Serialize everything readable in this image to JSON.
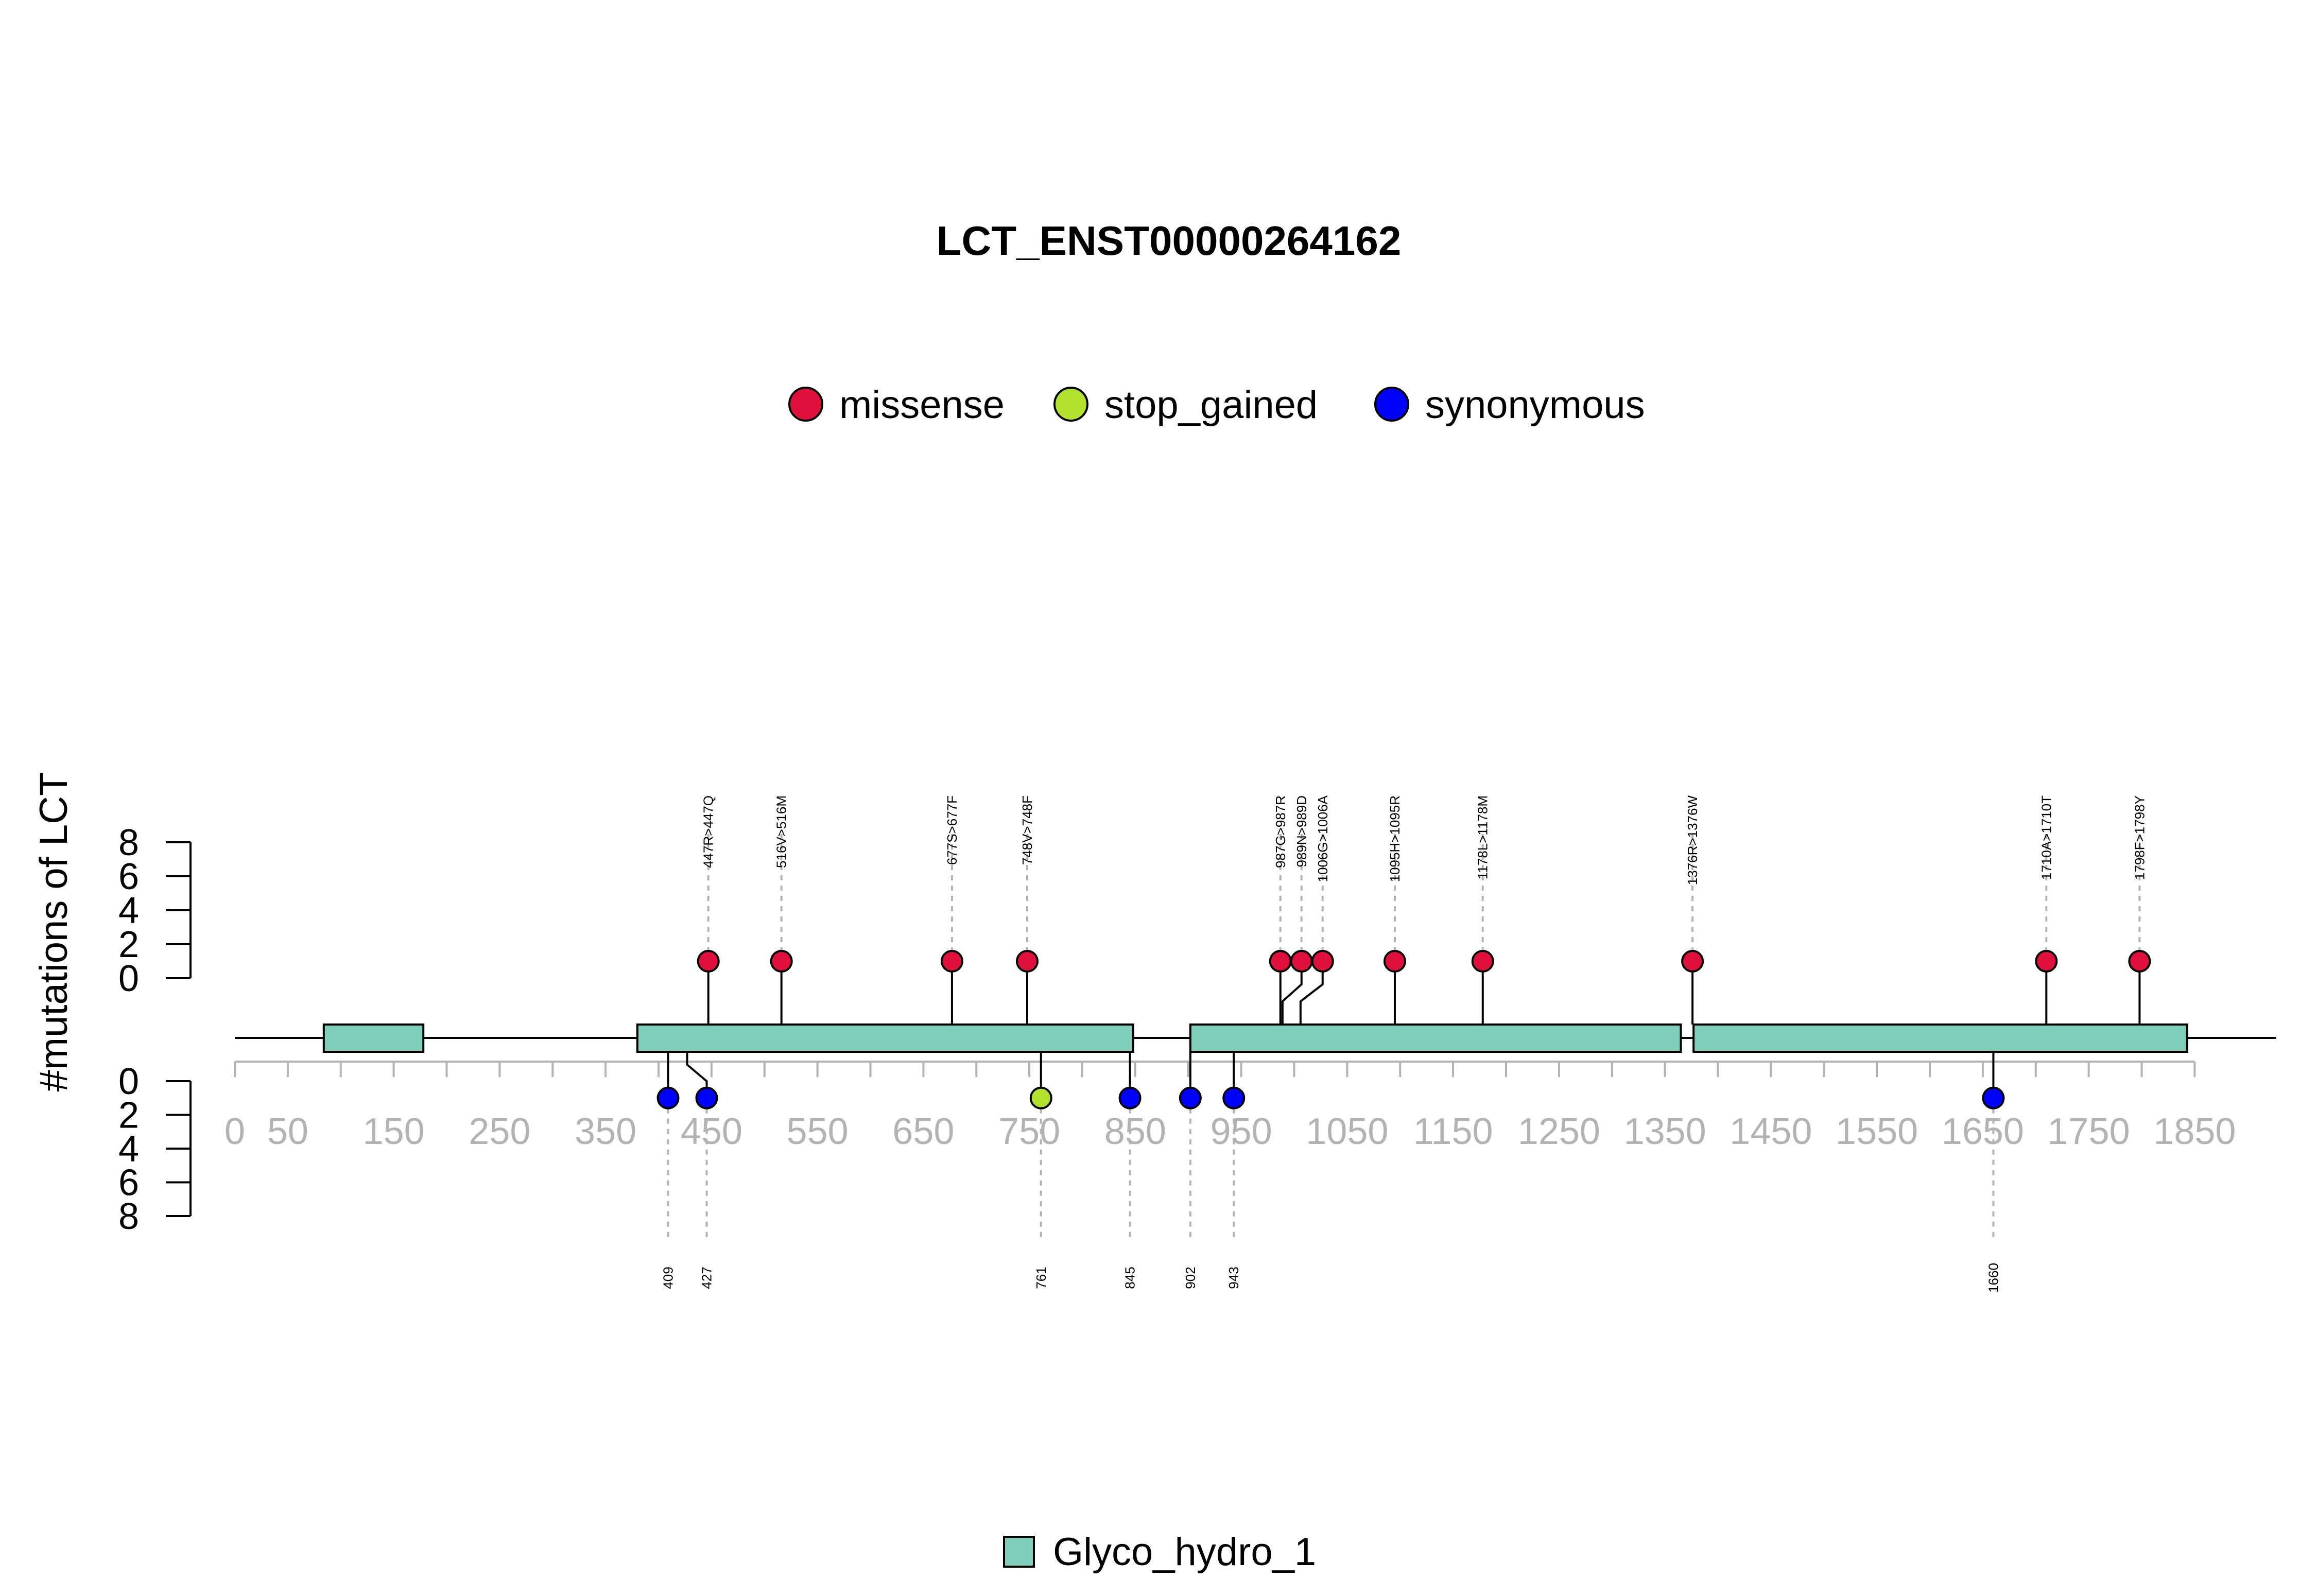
{
  "chart_data": {
    "type": "lollipop",
    "title": "LCT_ENST00000264162",
    "ylabel": "#mutations of LCT",
    "protein_length": 1927,
    "x_range": [
      0,
      1850
    ],
    "x_ticks": [
      0,
      50,
      150,
      250,
      350,
      450,
      550,
      650,
      750,
      850,
      950,
      1050,
      1150,
      1250,
      1350,
      1450,
      1550,
      1650,
      1750,
      1850
    ],
    "y_range_upper": [
      0,
      8
    ],
    "y_range_lower": [
      0,
      8
    ],
    "y_ticks_upper": [
      0,
      2,
      4,
      6,
      8
    ],
    "y_ticks_lower": [
      0,
      2,
      4,
      6,
      8
    ],
    "legend": [
      {
        "label": "missense",
        "color": "#E0103C"
      },
      {
        "label": "stop_gained",
        "color": "#B3E22E"
      },
      {
        "label": "synonymous",
        "color": "#0000FF"
      }
    ],
    "domain_legend": [
      {
        "label": "Glyco_hydro_1",
        "color": "#7FCDBB"
      }
    ],
    "domains": [
      {
        "name": "Glyco_hydro_1",
        "start": 84,
        "end": 178
      },
      {
        "name": "Glyco_hydro_1",
        "start": 380,
        "end": 848
      },
      {
        "name": "Glyco_hydro_1",
        "start": 902,
        "end": 1365
      },
      {
        "name": "Glyco_hydro_1",
        "start": 1377,
        "end": 1843
      }
    ],
    "mutations_upper": [
      {
        "pos": 447,
        "label": "447R>447Q",
        "type": "missense",
        "count": 1
      },
      {
        "pos": 516,
        "label": "516V>516M",
        "type": "missense",
        "count": 1
      },
      {
        "pos": 677,
        "label": "677S>677F",
        "type": "missense",
        "count": 1
      },
      {
        "pos": 748,
        "label": "748V>748F",
        "type": "missense",
        "count": 1
      },
      {
        "pos": 987,
        "label": "987G>987R",
        "type": "missense",
        "count": 1
      },
      {
        "pos": 989,
        "label": "989N>989D",
        "type": "missense",
        "count": 1
      },
      {
        "pos": 1006,
        "label": "1006G>1006A",
        "type": "missense",
        "count": 1
      },
      {
        "pos": 1095,
        "label": "1095H>1095R",
        "type": "missense",
        "count": 1
      },
      {
        "pos": 1178,
        "label": "1178L>1178M",
        "type": "missense",
        "count": 1
      },
      {
        "pos": 1376,
        "label": "1376R>1376W",
        "type": "missense",
        "count": 1
      },
      {
        "pos": 1710,
        "label": "1710A>1710T",
        "type": "missense",
        "count": 1
      },
      {
        "pos": 1798,
        "label": "1798F>1798Y",
        "type": "missense",
        "count": 1
      }
    ],
    "mutations_lower": [
      {
        "pos": 409,
        "label": "409",
        "type": "synonymous",
        "count": 1
      },
      {
        "pos": 427,
        "label": "427",
        "type": "synonymous",
        "count": 1
      },
      {
        "pos": 761,
        "label": "761",
        "type": "stop_gained",
        "count": 1
      },
      {
        "pos": 845,
        "label": "845",
        "type": "synonymous",
        "count": 1
      },
      {
        "pos": 902,
        "label": "902",
        "type": "synonymous",
        "count": 1
      },
      {
        "pos": 943,
        "label": "943",
        "type": "synonymous",
        "count": 1
      },
      {
        "pos": 1660,
        "label": "1660",
        "type": "synonymous",
        "count": 1
      }
    ]
  }
}
